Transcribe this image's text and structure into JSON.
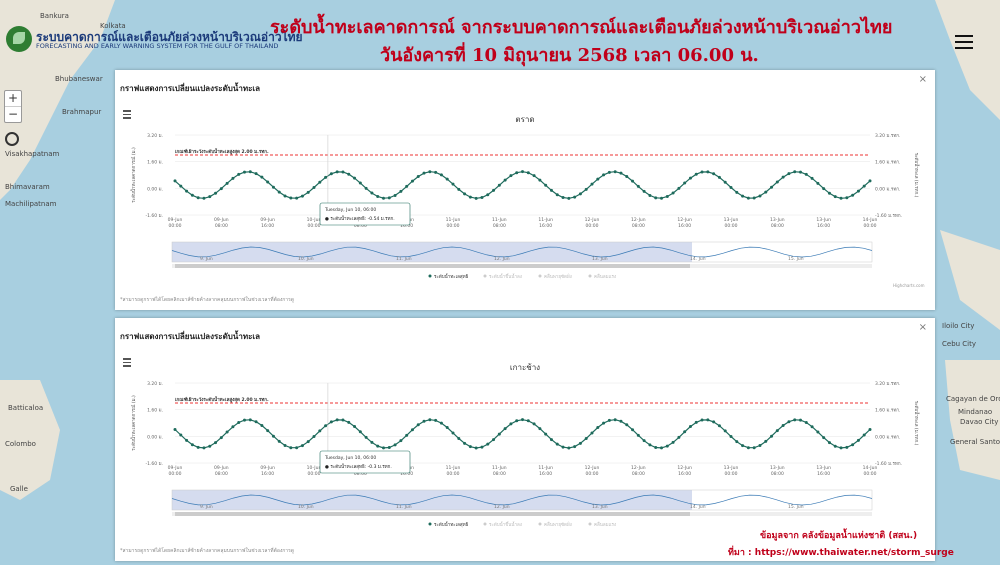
{
  "header": {
    "logo_th": "ระบบคาดการณ์และเตือนภัยล่วงหน้าบริเวณอ่าวไทย",
    "logo_en": "FORECASTING AND EARLY WARNING SYSTEM FOR THE GULF OF THAILAND",
    "title_line1": "ระดับน้ำทะเลคาดการณ์ จากระบบคาดการณ์และเตือนภัยล่วงหน้าบริเวณอ่าวไทย",
    "title_line2": "วันอังคารที่ 10 มิถุนายน 2568 เวลา 06.00 น."
  },
  "map": {
    "zoom_in": "+",
    "zoom_out": "−",
    "labels": [
      "Bankura",
      "Kolkata",
      "Bhubaneswar",
      "Brahmapur",
      "Visakhapatnam",
      "Bhimavaram",
      "Machilipatnam",
      "Batticaloa",
      "Colombo",
      "Galle",
      "Cebu City",
      "Davao City",
      "Cagayan de Oro",
      "Mindanao",
      "General Santos",
      "Iloilo City"
    ]
  },
  "panels": [
    {
      "title": "กราฟแสดงการเปลี่ยนแปลงระดับน้ำทะเล",
      "close": "×",
      "note": "*สามารถดูกราฟได้โดยคลิกเมาส์ซ้ายค้างลากคลุมบนกราฟในช่วงเวลาที่ต้องการดู",
      "chart_data": {
        "type": "line",
        "title": "ตราด",
        "ylabel_left": "ระดับน้ำทะเลคาดการณ์ (ม.)",
        "ylabel_right": "ระดับน้ำทะเล (ม.รทก.)",
        "y_ticks": [
          "3.20 ม.",
          "1.60 ม.",
          "0.00 ม.",
          "-1.60 ม."
        ],
        "y_ticks_right": [
          "3.20 ม.รทก.",
          "1.60 ม.รทก.",
          "0.00 ม.รทก.",
          "-1.60 ม.รทก."
        ],
        "ylim": [
          -1.6,
          3.2
        ],
        "warning_label": "เกณฑ์เฝ้าระวังระดับน้ำทะเลสูงสุด 2.00 ม.รทก.",
        "warning_level": 2.0,
        "x_ticks": [
          [
            "09-Jun",
            "00:00"
          ],
          [
            "09-Jun",
            "08:00"
          ],
          [
            "09-Jun",
            "16:00"
          ],
          [
            "10-Jun",
            "00:00"
          ],
          [
            "10-Jun",
            "08:00"
          ],
          [
            "10-Jun",
            "16:00"
          ],
          [
            "11-Jun",
            "00:00"
          ],
          [
            "11-Jun",
            "08:00"
          ],
          [
            "11-Jun",
            "16:00"
          ],
          [
            "12-Jun",
            "00:00"
          ],
          [
            "12-Jun",
            "08:00"
          ],
          [
            "12-Jun",
            "16:00"
          ],
          [
            "13-Jun",
            "00:00"
          ],
          [
            "13-Jun",
            "08:00"
          ],
          [
            "13-Jun",
            "16:00"
          ],
          [
            "14-Jun",
            "00:00"
          ]
        ],
        "series": [
          {
            "name": "ระดับน้ำทะเลสุทธิ",
            "color": "#1e6b5c",
            "amplitude": 0.8,
            "mean": 0.2,
            "phase": 0.9
          }
        ],
        "tooltip_time": "Tuesday, Jun 10, 06:00",
        "tooltip_value": "● ระดับน้ำทะเลสุทธิ: -0.54 ม.รทก.",
        "legend": [
          "ระดับน้ำทะเลสุทธิ",
          "ระดับน้ำขึ้นน้ำลง",
          "คลื่นพายุซัดฝั่ง",
          "คลื่นลมแรง"
        ],
        "navigator_ticks": [
          "9. Jun",
          "10. Jun",
          "11. Jun",
          "12. Jun",
          "13. Jun",
          "14. Jun",
          "15. Jun"
        ],
        "credit": "Highcharts.com"
      }
    },
    {
      "title": "กราฟแสดงการเปลี่ยนแปลงระดับน้ำทะเล",
      "close": "×",
      "note": "*สามารถดูกราฟได้โดยคลิกเมาส์ซ้ายค้างลากคลุมบนกราฟในช่วงเวลาที่ต้องการดู",
      "chart_data": {
        "type": "line",
        "title": "เกาะช้าง",
        "ylabel_left": "ระดับน้ำทะเลคาดการณ์ (ม.)",
        "ylabel_right": "ระดับน้ำทะเล (ม.รทก.)",
        "y_ticks": [
          "3.20 ม.",
          "1.60 ม.",
          "0.00 ม.",
          "-1.60 ม."
        ],
        "y_ticks_right": [
          "3.20 ม.รทก.",
          "1.60 ม.รทก.",
          "0.00 ม.รทก.",
          "-1.60 ม.รทก."
        ],
        "ylim": [
          -1.6,
          3.2
        ],
        "warning_label": "เกณฑ์เฝ้าระวังระดับน้ำทะเลสูงสุด 2.00 ม.รทก.",
        "warning_level": 2.0,
        "x_ticks": [
          [
            "09-Jun",
            "00:00"
          ],
          [
            "09-Jun",
            "08:00"
          ],
          [
            "09-Jun",
            "16:00"
          ],
          [
            "10-Jun",
            "00:00"
          ],
          [
            "10-Jun",
            "08:00"
          ],
          [
            "10-Jun",
            "16:00"
          ],
          [
            "11-Jun",
            "00:00"
          ],
          [
            "11-Jun",
            "08:00"
          ],
          [
            "11-Jun",
            "16:00"
          ],
          [
            "12-Jun",
            "00:00"
          ],
          [
            "12-Jun",
            "08:00"
          ],
          [
            "12-Jun",
            "16:00"
          ],
          [
            "13-Jun",
            "00:00"
          ],
          [
            "13-Jun",
            "08:00"
          ],
          [
            "13-Jun",
            "16:00"
          ],
          [
            "14-Jun",
            "00:00"
          ]
        ],
        "series": [
          {
            "name": "ระดับน้ำทะเลสุทธิ",
            "color": "#1e6b5c",
            "amplitude": 0.85,
            "mean": 0.15,
            "phase": 0.9
          }
        ],
        "tooltip_time": "Tuesday, Jun 10, 06:00",
        "tooltip_value": "● ระดับน้ำทะเลสุทธิ: -0.3 ม.รทก.",
        "legend": [
          "ระดับน้ำทะเลสุทธิ",
          "ระดับน้ำขึ้นน้ำลง",
          "คลื่นพายุซัดฝั่ง",
          "คลื่นลมแรง"
        ],
        "navigator_ticks": [
          "9. Jun",
          "10. Jun",
          "11. Jun",
          "12. Jun",
          "13. Jun",
          "14. Jun",
          "15. Jun"
        ],
        "credit": ""
      }
    }
  ],
  "footer": {
    "credit_line1": "ข้อมูลจาก คลังข้อมูลน้ำแห่งชาติ (สสน.)",
    "credit_line2": "ที่มา : https://www.thaiwater.net/storm_surge"
  }
}
